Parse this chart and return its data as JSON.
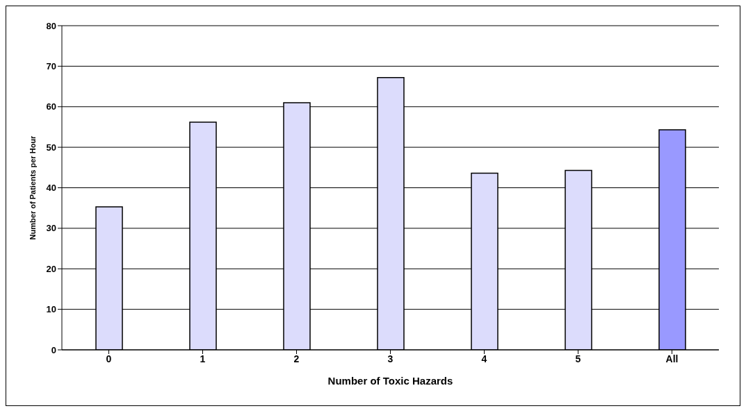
{
  "chart_data": {
    "type": "bar",
    "xlabel": "Number of Toxic Hazards",
    "ylabel": "Number of Patients per Hour",
    "categories": [
      "0",
      "1",
      "2",
      "3",
      "4",
      "5",
      "All"
    ],
    "values": [
      35.3,
      56.2,
      61.0,
      67.2,
      43.6,
      44.3,
      54.3
    ],
    "colors": [
      "#dcdcfc",
      "#dcdcfc",
      "#dcdcfc",
      "#dcdcfc",
      "#dcdcfc",
      "#dcdcfc",
      "#9999ff"
    ],
    "ylim": [
      0,
      80
    ],
    "yticks": [
      0,
      10,
      20,
      30,
      40,
      50,
      60,
      70,
      80
    ],
    "grid": "y"
  }
}
